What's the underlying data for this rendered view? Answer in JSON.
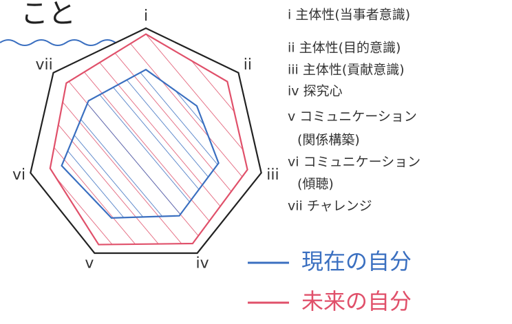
{
  "chart_data": {
    "type": "radar",
    "title": "こと",
    "categories": [
      "i",
      "ii",
      "iii",
      "iv",
      "v",
      "vi",
      "vii"
    ],
    "descriptions": [
      [
        "i 主体性(当事者意識)"
      ],
      [
        "ii 主体性(目的意識)"
      ],
      [
        "iii 主体性(貢献意識)"
      ],
      [
        "iv 探究心"
      ],
      [
        "v コミュニケーション",
        "(関係構築)"
      ],
      [
        "vi コミュニケーション",
        "(傾聴)"
      ],
      [
        "vii チャレンジ"
      ]
    ],
    "rlim": [
      0,
      10
    ],
    "series": [
      {
        "name": "未来の自分",
        "color": "#e0506a",
        "values": [
          9.5,
          8.8,
          8.8,
          9.1,
          9.2,
          8.3,
          8.6
        ]
      },
      {
        "name": "現在の自分",
        "color": "#3a6fc0",
        "values": [
          6.5,
          5.5,
          6.3,
          6.5,
          6.7,
          7.3,
          6.2
        ]
      }
    ]
  }
}
